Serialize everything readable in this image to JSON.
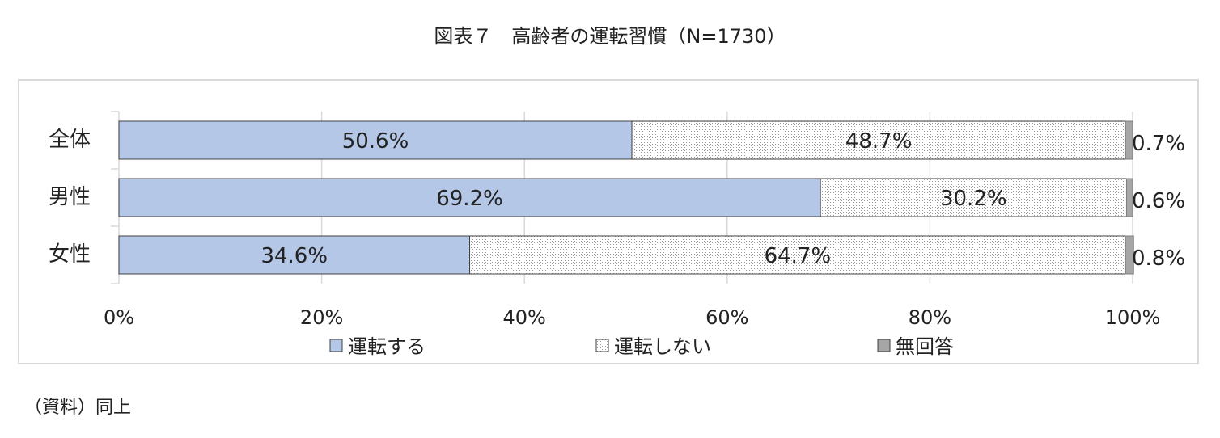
{
  "chart_data": {
    "type": "stacked-barh",
    "title": "図表７　高齢者の運転習慣（N=1730）",
    "source": "（資料）同上",
    "categories": [
      "全体",
      "男性",
      "女性"
    ],
    "series": [
      {
        "name": "運転する",
        "color": "#b4c7e7",
        "values": [
          50.6,
          69.2,
          34.6
        ],
        "value_labels": [
          "50.6%",
          "69.2%",
          "34.6%"
        ]
      },
      {
        "name": "運転しない",
        "color": "#ffffff",
        "pattern": "dots",
        "values": [
          48.7,
          30.2,
          64.7
        ],
        "value_labels": [
          "48.7%",
          "30.2%",
          "64.7%"
        ]
      },
      {
        "name": "無回答",
        "color": "#a6a6a6",
        "values": [
          0.7,
          0.6,
          0.8
        ],
        "value_labels": [
          "0.7%",
          "0.6%",
          "0.8%"
        ]
      }
    ],
    "xlim": [
      0,
      100
    ],
    "xticks": [
      {
        "value": 0,
        "label": "0%"
      },
      {
        "value": 20,
        "label": "20%"
      },
      {
        "value": 40,
        "label": "40%"
      },
      {
        "value": 60,
        "label": "60%"
      },
      {
        "value": 80,
        "label": "80%"
      },
      {
        "value": 100,
        "label": "100%"
      }
    ],
    "grid": true,
    "legend": "bottom"
  }
}
